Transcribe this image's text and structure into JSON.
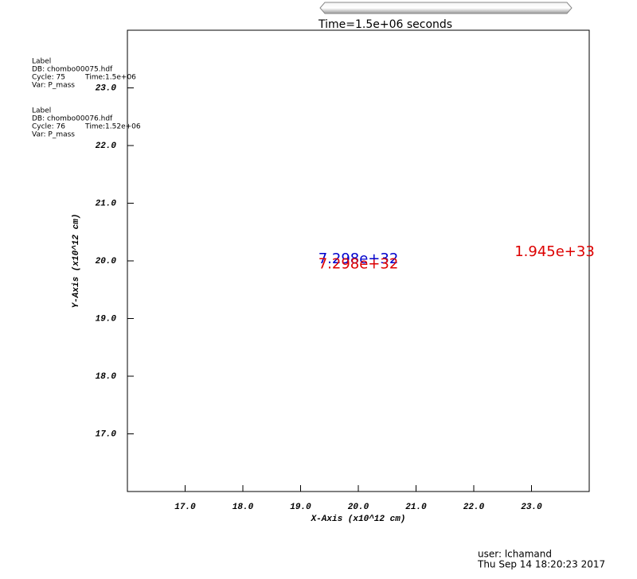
{
  "chart_data": {
    "type": "label",
    "title": "Time=1.5e+06 seconds",
    "x_label": "X-Axis (x10^12 cm)",
    "y_label": "Y-Axis (x10^12 cm)",
    "xlim": [
      16,
      24
    ],
    "ylim": [
      16,
      24
    ],
    "xticks": [
      {
        "value": 17,
        "label": "17.0"
      },
      {
        "value": 18,
        "label": "18.0"
      },
      {
        "value": 19,
        "label": "19.0"
      },
      {
        "value": 20,
        "label": "20.0"
      },
      {
        "value": 21,
        "label": "21.0"
      },
      {
        "value": 22,
        "label": "22.0"
      },
      {
        "value": 23,
        "label": "23.0"
      }
    ],
    "yticks": [
      {
        "value": 17,
        "label": "17.0"
      },
      {
        "value": 18,
        "label": "18.0"
      },
      {
        "value": 19,
        "label": "19.0"
      },
      {
        "value": 20,
        "label": "20.0"
      },
      {
        "value": 21,
        "label": "21.0"
      },
      {
        "value": 22,
        "label": "22.0"
      },
      {
        "value": 23,
        "label": "23.0"
      }
    ],
    "series": [
      {
        "name": "Label",
        "db": "DB: chombo00075.hdf",
        "cycle": "Cycle: 75",
        "time": "Time:1.5e+06",
        "var": "Var: P_mass",
        "color": "#0000cc",
        "x": [
          20.0
        ],
        "y": [
          20.03
        ],
        "labels": [
          "7.298e+32"
        ]
      },
      {
        "name": "Label",
        "db": "DB: chombo00076.hdf",
        "cycle": "Cycle: 76",
        "time": "Time:1.52e+06",
        "var": "Var: P_mass",
        "color": "#dd0000",
        "x": [
          20.0,
          23.4
        ],
        "y": [
          19.94,
          20.15
        ],
        "labels": [
          "7.298e+32",
          "1.945e+33"
        ]
      }
    ],
    "user": "user: lchamand",
    "date": "Thu Sep 14 18:20:23 2017"
  }
}
